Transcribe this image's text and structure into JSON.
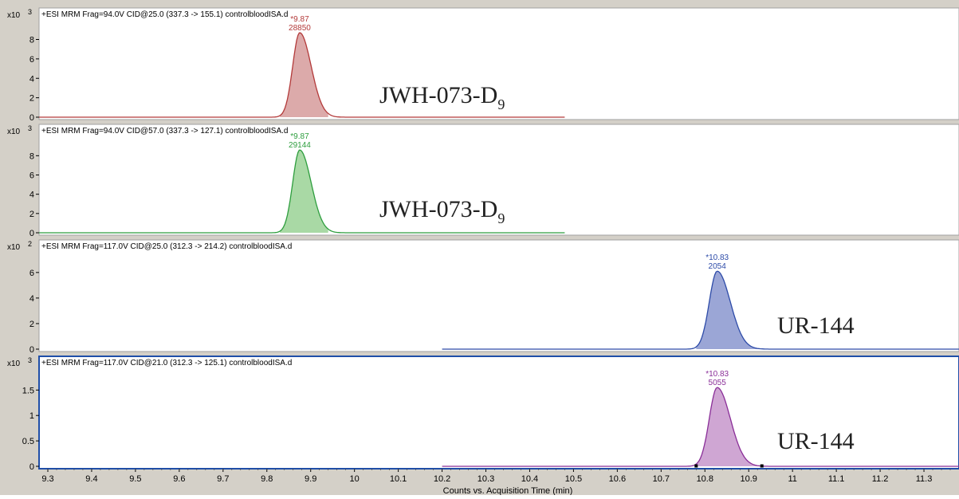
{
  "window": {
    "background": "#d4d0c8",
    "plot_background": "#ffffff"
  },
  "xaxis": {
    "label": "Counts vs. Acquisition Time (min)",
    "ticks": [
      9.3,
      9.4,
      9.5,
      9.6,
      9.7,
      9.8,
      9.9,
      10,
      10.1,
      10.2,
      10.3,
      10.4,
      10.5,
      10.6,
      10.7,
      10.8,
      10.9,
      11,
      11.1,
      11.2,
      11.3
    ],
    "tick_labels": [
      "9.3",
      "9.4",
      "9.5",
      "9.6",
      "9.7",
      "9.8",
      "9.9",
      "10",
      "10.1",
      "10.2",
      "10.3",
      "10.4",
      "10.5",
      "10.6",
      "10.7",
      "10.8",
      "10.9",
      "11",
      "11.1",
      "11.2",
      "11.3"
    ]
  },
  "chart_data": [
    {
      "type": "area",
      "title": "+ESI MRM Frag=94.0V CID@25.0 (337.3 -> 155.1) controlbloodISA.d",
      "scale_label": "x10",
      "scale_exp": "3",
      "color": "#b33a3a",
      "fill": "#dcaaaa",
      "xlim": [
        9.28,
        11.38
      ],
      "ylim": [
        0,
        9.6
      ],
      "yticks": [
        0,
        2,
        4,
        6,
        8
      ],
      "ytick_labels": [
        "0",
        "2",
        "4",
        "6",
        "8"
      ],
      "peak": {
        "rt_label": "*9.87",
        "area_label": "28850",
        "rt": 9.875,
        "height": 8.7,
        "sigma_left": 0.016,
        "sigma_right": 0.026,
        "tail_start": 9.83,
        "tail_end": 9.94
      },
      "trace_range": [
        9.28,
        10.48
      ],
      "compound_name": "JWH-073-D",
      "compound_sub": "9"
    },
    {
      "type": "area",
      "title": "+ESI MRM Frag=94.0V CID@57.0 (337.3 -> 127.1) controlbloodISA.d",
      "scale_label": "x10",
      "scale_exp": "3",
      "color": "#2e9e3e",
      "fill": "#a9d9a5",
      "xlim": [
        9.28,
        11.38
      ],
      "ylim": [
        0,
        9.6
      ],
      "yticks": [
        0,
        2,
        4,
        6,
        8
      ],
      "ytick_labels": [
        "0",
        "2",
        "4",
        "6",
        "8"
      ],
      "peak": {
        "rt_label": "*9.87",
        "area_label": "29144",
        "rt": 9.875,
        "height": 8.6,
        "sigma_left": 0.016,
        "sigma_right": 0.026,
        "tail_start": 9.83,
        "tail_end": 9.94
      },
      "trace_range": [
        9.28,
        10.48
      ],
      "compound_name": "JWH-073-D",
      "compound_sub": "9"
    },
    {
      "type": "area",
      "title": "+ESI MRM Frag=117.0V CID@25.0 (312.3 -> 214.2) controlbloodISA.d",
      "scale_label": "x10",
      "scale_exp": "2",
      "color": "#2d4ba8",
      "fill": "#9ba6d6",
      "xlim": [
        9.28,
        11.38
      ],
      "ylim": [
        0,
        7.3
      ],
      "yticks": [
        0,
        2,
        4,
        6
      ],
      "ytick_labels": [
        "0",
        "2",
        "4",
        "6"
      ],
      "peak": {
        "rt_label": "*10.83",
        "area_label": "2054",
        "rt": 10.828,
        "height": 6.1,
        "sigma_left": 0.018,
        "sigma_right": 0.03,
        "tail_start": 10.78,
        "tail_end": 10.93
      },
      "trace_range": [
        10.2,
        11.38
      ],
      "compound_name": "UR-144",
      "compound_sub": ""
    },
    {
      "type": "area",
      "title": "+ESI MRM Frag=117.0V CID@21.0 (312.3 -> 125.1) controlbloodISA.d",
      "scale_label": "x10",
      "scale_exp": "3",
      "color": "#8a2e98",
      "fill": "#cfa6d3",
      "xlim": [
        9.28,
        11.38
      ],
      "ylim": [
        0,
        1.85
      ],
      "yticks": [
        0,
        0.5,
        1,
        1.5
      ],
      "ytick_labels": [
        "0",
        "0.5",
        "1",
        "1.5"
      ],
      "peak": {
        "rt_label": "*10.83",
        "area_label": "5055",
        "rt": 10.828,
        "height": 1.55,
        "sigma_left": 0.018,
        "sigma_right": 0.03,
        "tail_start": 10.78,
        "tail_end": 10.93
      },
      "trace_range": [
        10.2,
        11.38
      ],
      "compound_name": "UR-144",
      "compound_sub": "",
      "selected": true
    }
  ]
}
